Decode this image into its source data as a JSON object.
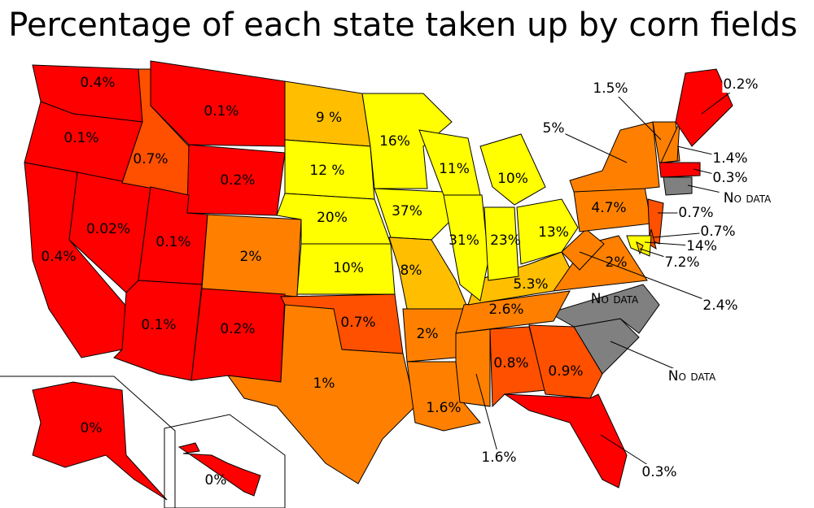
{
  "title": "Percentage of each state taken up by corn fields",
  "states": [
    {
      "label": "0.4%",
      "color": "#ff0000"
    },
    {
      "label": "0.1%",
      "color": "#ff0000"
    },
    {
      "label": "0.4%",
      "color": "#ff0000"
    },
    {
      "label": "0.02%",
      "color": "#ff0000"
    },
    {
      "label": "0.7%",
      "color": "#ff5000"
    },
    {
      "label": "0.1%",
      "color": "#ff0000"
    },
    {
      "label": "0.2%",
      "color": "#ff0000"
    },
    {
      "label": "0.1%",
      "color": "#ff0000"
    },
    {
      "label": "0.1%",
      "color": "#ff0000"
    },
    {
      "label": "2%",
      "color": "#ff8000"
    },
    {
      "label": "0.2%",
      "color": "#ff0000"
    },
    {
      "label": "9 %",
      "color": "#ffbf00"
    },
    {
      "label": "12 %",
      "color": "#ffff00"
    },
    {
      "label": "20%",
      "color": "#ffff00"
    },
    {
      "label": "10%",
      "color": "#ffff00"
    },
    {
      "label": "0.7%",
      "color": "#ff5000"
    },
    {
      "label": "1%",
      "color": "#ff8000"
    },
    {
      "label": "16%",
      "color": "#ffff00"
    },
    {
      "label": "37%",
      "color": "#ffff00"
    },
    {
      "label": "8%",
      "color": "#ffbf00"
    },
    {
      "label": "2%",
      "color": "#ff8000"
    },
    {
      "label": "1.6%",
      "color": "#ff8000"
    },
    {
      "label": "1.6%",
      "color": "#ff8000"
    },
    {
      "label": "0.8%",
      "color": "#ff5000"
    },
    {
      "label": "0.9%",
      "color": "#ff5000"
    },
    {
      "label": "0.3%",
      "color": "#ff0000"
    },
    {
      "label": "No data",
      "color": "#808080"
    },
    {
      "label": "No data",
      "color": "#808080"
    },
    {
      "label": "2.6%",
      "color": "#ff8000"
    },
    {
      "label": "5.3%",
      "color": "#ffbf00"
    },
    {
      "label": "2%",
      "color": "#ff8000"
    },
    {
      "label": "2.4%",
      "color": "#ff8000"
    },
    {
      "label": "11%",
      "color": "#ffff00"
    },
    {
      "label": "31%",
      "color": "#ffff00"
    },
    {
      "label": "23%",
      "color": "#ffff00"
    },
    {
      "label": "10%",
      "color": "#ffff00"
    },
    {
      "label": "13%",
      "color": "#ffff00"
    },
    {
      "label": "4.7%",
      "color": "#ff8000"
    },
    {
      "label": "5%",
      "color": "#ff8000"
    },
    {
      "label": "1.5%",
      "color": "#ff8000"
    },
    {
      "label": "1.4%",
      "color": "#ff8000"
    },
    {
      "label": "0.2%",
      "color": "#ff0000"
    },
    {
      "label": "0.3%",
      "color": "#ff0000"
    },
    {
      "label": "No data",
      "color": "#808080"
    },
    {
      "label": "0.7%",
      "color": "#ff5000"
    },
    {
      "label": "0.7%",
      "color": "#ff5000"
    },
    {
      "label": "14%",
      "color": "#ffff00"
    },
    {
      "label": "7.2%",
      "color": "#ffbf00"
    },
    {
      "label": "0%",
      "color": "#ff0000"
    },
    {
      "label": "0%",
      "color": "#ff0000"
    }
  ]
}
